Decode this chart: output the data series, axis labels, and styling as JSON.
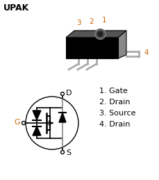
{
  "title": "UPAK",
  "pin_labels": [
    "1. Gate",
    "2. Drain",
    "3. Source",
    "4. Drain"
  ],
  "pin_numbers_top": [
    "1",
    "2",
    "3",
    "4"
  ],
  "gate_label": "G",
  "drain_label": "D",
  "source_label": "S",
  "bg_color": "#ffffff",
  "text_color": "#000000",
  "orange_color": "#cc6600",
  "title_fontsize": 9,
  "label_fontsize": 8,
  "pin_fontsize": 7.5,
  "legend_fontsize": 8
}
